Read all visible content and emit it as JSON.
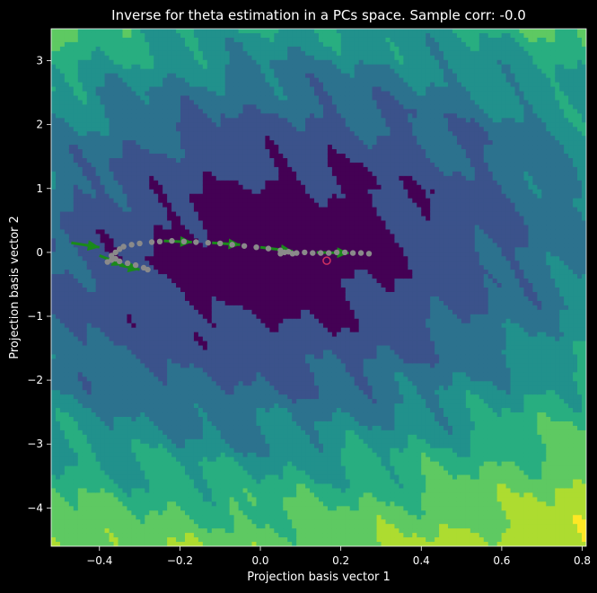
{
  "chart_data": {
    "type": "contour",
    "title": "Inverse for theta estimation in a PCs space. Sample corr: -0.0",
    "xlabel": "Projection basis vector 1",
    "ylabel": "Projection basis vector 2",
    "xlim": [
      -0.52,
      0.81
    ],
    "ylim": [
      -4.6,
      3.5
    ],
    "xticks": [
      -0.4,
      -0.2,
      0.0,
      0.2,
      0.4,
      0.6,
      0.8
    ],
    "xtick_labels": [
      "−0.4",
      "−0.2",
      "0.0",
      "0.2",
      "0.4",
      "0.6",
      "0.8"
    ],
    "yticks": [
      3,
      2,
      1,
      0,
      -1,
      -2,
      -3,
      -4
    ],
    "ytick_labels": [
      "3",
      "2",
      "1",
      "0",
      "−1",
      "−2",
      "−3",
      "−4"
    ],
    "colormap": [
      "#440154",
      "#3b528b",
      "#2c728e",
      "#21918c",
      "#28ae80",
      "#5ec962",
      "#addc30",
      "#fde725"
    ],
    "path_points": [
      [
        -0.38,
        -0.15
      ],
      [
        -0.37,
        -0.12
      ],
      [
        -0.36,
        -0.1
      ],
      [
        -0.35,
        -0.14
      ],
      [
        -0.33,
        -0.17
      ],
      [
        -0.31,
        -0.2
      ],
      [
        -0.29,
        -0.24
      ],
      [
        -0.28,
        -0.27
      ],
      [
        -0.37,
        -0.05
      ],
      [
        -0.36,
        0.0
      ],
      [
        -0.35,
        0.05
      ],
      [
        -0.34,
        0.09
      ],
      [
        -0.32,
        0.12
      ],
      [
        -0.3,
        0.14
      ],
      [
        -0.27,
        0.16
      ],
      [
        -0.25,
        0.17
      ],
      [
        -0.22,
        0.18
      ],
      [
        -0.19,
        0.17
      ],
      [
        -0.16,
        0.16
      ],
      [
        -0.13,
        0.15
      ],
      [
        -0.1,
        0.14
      ],
      [
        -0.07,
        0.12
      ],
      [
        -0.04,
        0.1
      ],
      [
        -0.01,
        0.08
      ],
      [
        0.02,
        0.06
      ],
      [
        0.05,
        0.03
      ],
      [
        0.07,
        0.01
      ],
      [
        0.09,
        -0.01
      ],
      [
        0.11,
        0.0
      ],
      [
        0.13,
        -0.01
      ],
      [
        0.15,
        -0.01
      ],
      [
        0.17,
        -0.01
      ],
      [
        0.19,
        0.0
      ],
      [
        0.21,
        0.0
      ],
      [
        0.23,
        -0.01
      ],
      [
        0.25,
        -0.01
      ],
      [
        0.27,
        -0.02
      ],
      [
        0.05,
        -0.02
      ],
      [
        0.06,
        0.0
      ],
      [
        0.08,
        -0.02
      ]
    ],
    "arrows": [
      [
        -0.47,
        0.15,
        -0.4,
        0.08
      ],
      [
        -0.4,
        -0.05,
        -0.34,
        -0.2
      ],
      [
        -0.35,
        -0.2,
        -0.3,
        -0.27
      ],
      [
        -0.24,
        0.18,
        -0.17,
        0.16
      ],
      [
        -0.12,
        0.15,
        -0.05,
        0.12
      ],
      [
        0.0,
        0.08,
        0.08,
        0.02
      ],
      [
        0.14,
        0.0,
        0.22,
        -0.01
      ]
    ],
    "true_point": [
      0.165,
      -0.13
    ]
  }
}
